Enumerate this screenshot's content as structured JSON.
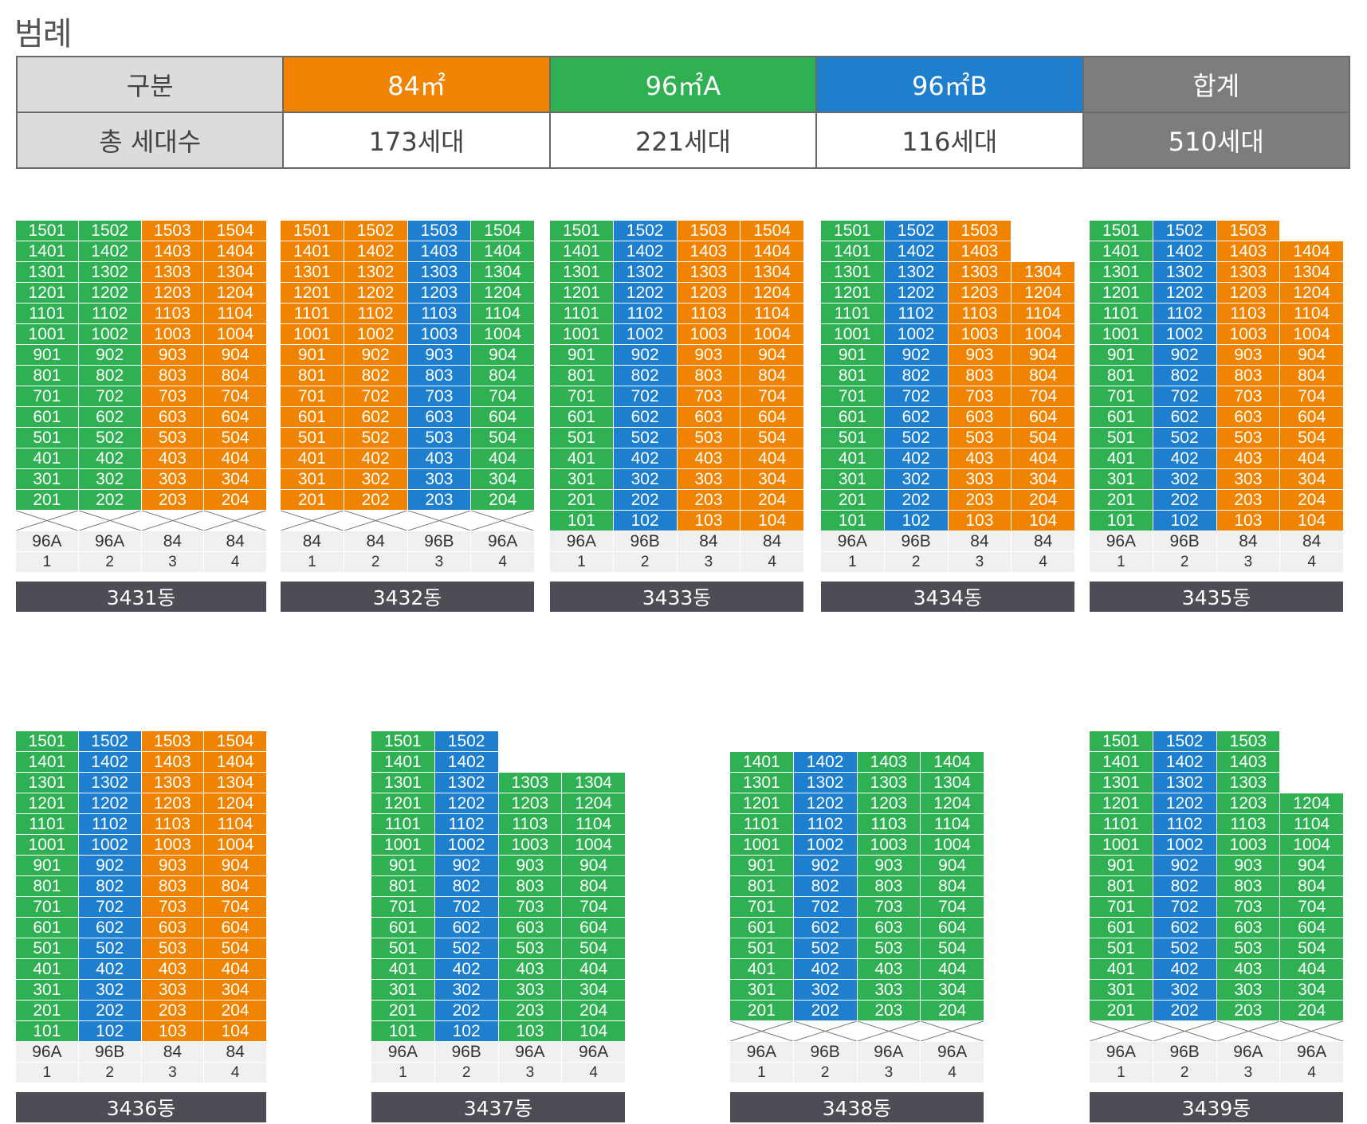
{
  "colors": {
    "84": "#f08300",
    "96A": "#2fb053",
    "96B": "#1f7fcf",
    "total": "#7d7d7d",
    "header": "#dcdcdc",
    "namebar": "#4d4d55"
  },
  "legend": {
    "title": "범례",
    "row_header": "구분",
    "row_label": "총 세대수",
    "columns": [
      {
        "name": "84㎡",
        "count": "173세대",
        "color_key": "84"
      },
      {
        "name": "96㎡A",
        "count": "221세대",
        "color_key": "96A"
      },
      {
        "name": "96㎡B",
        "count": "116세대",
        "color_key": "96B"
      },
      {
        "name": "합계",
        "count": "510세대",
        "color_key": "total"
      }
    ]
  },
  "buildings": [
    {
      "name": "3431동",
      "types": [
        "96A",
        "96A",
        "84",
        "84"
      ],
      "lines": [
        "1",
        "2",
        "3",
        "4"
      ],
      "tops": [
        15,
        15,
        15,
        15
      ],
      "bottoms": [
        2,
        2,
        2,
        2
      ],
      "pilotis": [
        true,
        true,
        true,
        true
      ]
    },
    {
      "name": "3432동",
      "types": [
        "84",
        "84",
        "96B",
        "96A"
      ],
      "lines": [
        "1",
        "2",
        "3",
        "4"
      ],
      "tops": [
        15,
        15,
        15,
        15
      ],
      "bottoms": [
        2,
        2,
        2,
        2
      ],
      "pilotis": [
        true,
        true,
        true,
        true
      ]
    },
    {
      "name": "3433동",
      "types": [
        "96A",
        "96B",
        "84",
        "84"
      ],
      "lines": [
        "1",
        "2",
        "3",
        "4"
      ],
      "tops": [
        15,
        15,
        15,
        15
      ],
      "bottoms": [
        1,
        1,
        1,
        1
      ],
      "pilotis": [
        false,
        false,
        false,
        false
      ]
    },
    {
      "name": "3434동",
      "types": [
        "96A",
        "96B",
        "84",
        "84"
      ],
      "lines": [
        "1",
        "2",
        "3",
        "4"
      ],
      "tops": [
        15,
        15,
        15,
        13
      ],
      "bottoms": [
        1,
        1,
        1,
        1
      ],
      "pilotis": [
        false,
        false,
        false,
        false
      ]
    },
    {
      "name": "3435동",
      "types": [
        "96A",
        "96B",
        "84",
        "84"
      ],
      "lines": [
        "1",
        "2",
        "3",
        "4"
      ],
      "tops": [
        15,
        15,
        15,
        14
      ],
      "bottoms": [
        1,
        1,
        1,
        1
      ],
      "pilotis": [
        false,
        false,
        false,
        false
      ]
    },
    {
      "name": "3436동",
      "types": [
        "96A",
        "96B",
        "84",
        "84"
      ],
      "lines": [
        "1",
        "2",
        "3",
        "4"
      ],
      "tops": [
        15,
        15,
        15,
        15
      ],
      "bottoms": [
        1,
        1,
        1,
        1
      ],
      "pilotis": [
        false,
        false,
        false,
        false
      ]
    },
    {
      "name": "3437동",
      "types": [
        "96A",
        "96B",
        "96A",
        "96A"
      ],
      "lines": [
        "1",
        "2",
        "3",
        "4"
      ],
      "tops": [
        15,
        15,
        13,
        13
      ],
      "bottoms": [
        1,
        1,
        1,
        1
      ],
      "pilotis": [
        false,
        false,
        false,
        false
      ]
    },
    {
      "name": "3438동",
      "types": [
        "96A",
        "96B",
        "96A",
        "96A"
      ],
      "lines": [
        "1",
        "2",
        "3",
        "4"
      ],
      "tops": [
        14,
        14,
        14,
        14
      ],
      "bottoms": [
        2,
        2,
        2,
        2
      ],
      "pilotis": [
        true,
        true,
        true,
        true
      ]
    },
    {
      "name": "3439동",
      "types": [
        "96A",
        "96B",
        "96A",
        "96A"
      ],
      "lines": [
        "1",
        "2",
        "3",
        "4"
      ],
      "tops": [
        15,
        15,
        15,
        12
      ],
      "bottoms": [
        2,
        2,
        2,
        2
      ],
      "pilotis": [
        true,
        true,
        true,
        true
      ]
    }
  ]
}
